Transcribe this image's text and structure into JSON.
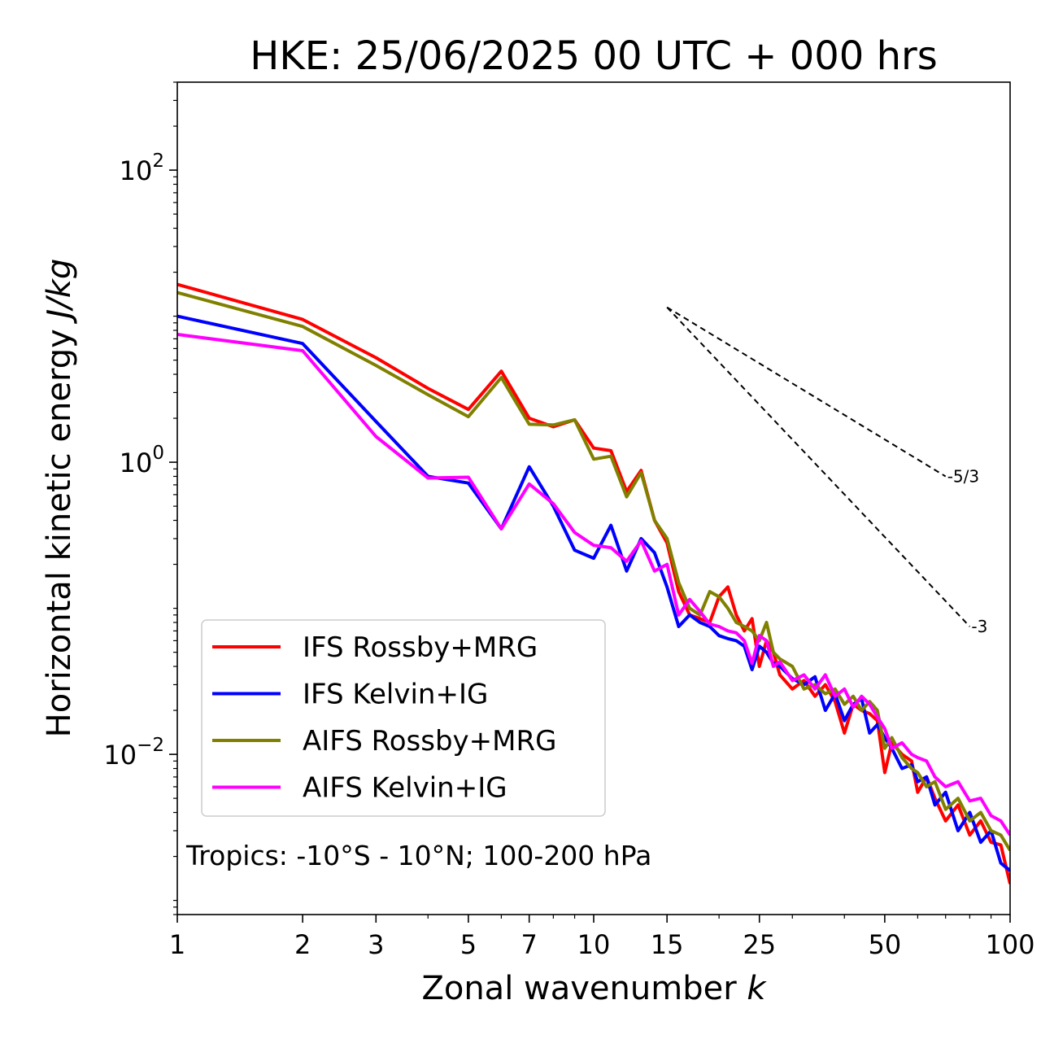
{
  "chart_data": {
    "type": "line",
    "title": "HKE: 25/06/2025 00 UTC + 000 hrs",
    "xlabel": "Zonal wavenumber",
    "xlabel_var": "k",
    "ylabel": "Horizontal kinetic energy",
    "ylabel_unit": "J/kg",
    "xscale": "log",
    "yscale": "log",
    "xlim": [
      1,
      100
    ],
    "ylim": [
      0.0008,
      400
    ],
    "xticks": [
      1,
      2,
      3,
      5,
      7,
      10,
      15,
      25,
      50,
      100
    ],
    "xtick_labels": [
      "1",
      "2",
      "3",
      "5",
      "7",
      "10",
      "15",
      "25",
      "50",
      "100"
    ],
    "yticks": [
      {
        "value": 100,
        "base": "10",
        "exp": "2"
      },
      {
        "value": 1,
        "base": "10",
        "exp": "0"
      },
      {
        "value": 0.01,
        "base": "10",
        "exp": "−2"
      }
    ],
    "legend_position": "lower-left",
    "annotation": "Tropics: -10°S - 10°N; 100-200 hPa",
    "reference_slopes": [
      {
        "label": "-5/3",
        "x": [
          15,
          70
        ],
        "y": [
          11.5,
          0.8
        ]
      },
      {
        "label": "-3",
        "x": [
          15,
          80
        ],
        "y": [
          11.5,
          0.075
        ]
      }
    ],
    "series": [
      {
        "name": "IFS Rossby+MRG",
        "color": "#ff0000",
        "points": [
          [
            1,
            16.5
          ],
          [
            2,
            9.5
          ],
          [
            3,
            5.2
          ],
          [
            4,
            3.2
          ],
          [
            5,
            2.3
          ],
          [
            6,
            4.2
          ],
          [
            7,
            2.0
          ],
          [
            8,
            1.75
          ],
          [
            9,
            1.95
          ],
          [
            10,
            1.25
          ],
          [
            11,
            1.2
          ],
          [
            12,
            0.63
          ],
          [
            13,
            0.88
          ],
          [
            14,
            0.4
          ],
          [
            15,
            0.28
          ],
          [
            16,
            0.13
          ],
          [
            17,
            0.09
          ],
          [
            18,
            0.085
          ],
          [
            19,
            0.08
          ],
          [
            20,
            0.12
          ],
          [
            21,
            0.14
          ],
          [
            22,
            0.09
          ],
          [
            23,
            0.07
          ],
          [
            24,
            0.085
          ],
          [
            25,
            0.04
          ],
          [
            26,
            0.06
          ],
          [
            27,
            0.05
          ],
          [
            28,
            0.035
          ],
          [
            30,
            0.028
          ],
          [
            32,
            0.032
          ],
          [
            34,
            0.025
          ],
          [
            36,
            0.03
          ],
          [
            38,
            0.023
          ],
          [
            40,
            0.014
          ],
          [
            42,
            0.022
          ],
          [
            44,
            0.02
          ],
          [
            46,
            0.019
          ],
          [
            48,
            0.017
          ],
          [
            50,
            0.0075
          ],
          [
            52,
            0.012
          ],
          [
            55,
            0.01
          ],
          [
            58,
            0.009
          ],
          [
            60,
            0.0055
          ],
          [
            63,
            0.007
          ],
          [
            66,
            0.005
          ],
          [
            70,
            0.0035
          ],
          [
            75,
            0.0045
          ],
          [
            80,
            0.0028
          ],
          [
            85,
            0.0035
          ],
          [
            90,
            0.0025
          ],
          [
            95,
            0.0024
          ],
          [
            100,
            0.0013
          ]
        ]
      },
      {
        "name": "IFS Kelvin+IG",
        "color": "#0000ff",
        "points": [
          [
            1,
            10
          ],
          [
            2,
            6.5
          ],
          [
            3,
            1.9
          ],
          [
            4,
            0.8
          ],
          [
            5,
            0.72
          ],
          [
            6,
            0.35
          ],
          [
            7,
            0.93
          ],
          [
            8,
            0.5
          ],
          [
            9,
            0.25
          ],
          [
            10,
            0.22
          ],
          [
            11,
            0.37
          ],
          [
            12,
            0.18
          ],
          [
            13,
            0.3
          ],
          [
            14,
            0.24
          ],
          [
            15,
            0.14
          ],
          [
            16,
            0.075
          ],
          [
            17,
            0.09
          ],
          [
            18,
            0.08
          ],
          [
            19,
            0.075
          ],
          [
            20,
            0.065
          ],
          [
            21,
            0.062
          ],
          [
            22,
            0.06
          ],
          [
            23,
            0.055
          ],
          [
            24,
            0.038
          ],
          [
            25,
            0.055
          ],
          [
            26,
            0.05
          ],
          [
            27,
            0.042
          ],
          [
            28,
            0.04
          ],
          [
            30,
            0.033
          ],
          [
            32,
            0.03
          ],
          [
            34,
            0.034
          ],
          [
            36,
            0.02
          ],
          [
            38,
            0.026
          ],
          [
            40,
            0.017
          ],
          [
            42,
            0.022
          ],
          [
            44,
            0.024
          ],
          [
            46,
            0.014
          ],
          [
            48,
            0.016
          ],
          [
            50,
            0.013
          ],
          [
            52,
            0.011
          ],
          [
            55,
            0.008
          ],
          [
            58,
            0.0085
          ],
          [
            60,
            0.0065
          ],
          [
            63,
            0.007
          ],
          [
            66,
            0.0045
          ],
          [
            70,
            0.0055
          ],
          [
            75,
            0.003
          ],
          [
            80,
            0.004
          ],
          [
            85,
            0.0025
          ],
          [
            90,
            0.003
          ],
          [
            95,
            0.0018
          ],
          [
            100,
            0.0016
          ]
        ]
      },
      {
        "name": "AIFS Rossby+MRG",
        "color": "#808000",
        "points": [
          [
            1,
            14.5
          ],
          [
            2,
            8.5
          ],
          [
            3,
            4.6
          ],
          [
            4,
            2.9
          ],
          [
            5,
            2.05
          ],
          [
            6,
            3.8
          ],
          [
            7,
            1.82
          ],
          [
            8,
            1.8
          ],
          [
            9,
            1.95
          ],
          [
            10,
            1.05
          ],
          [
            11,
            1.1
          ],
          [
            12,
            0.58
          ],
          [
            13,
            0.85
          ],
          [
            14,
            0.4
          ],
          [
            15,
            0.3
          ],
          [
            16,
            0.15
          ],
          [
            17,
            0.1
          ],
          [
            18,
            0.09
          ],
          [
            19,
            0.13
          ],
          [
            20,
            0.12
          ],
          [
            21,
            0.1
          ],
          [
            22,
            0.08
          ],
          [
            23,
            0.075
          ],
          [
            24,
            0.07
          ],
          [
            25,
            0.06
          ],
          [
            26,
            0.08
          ],
          [
            27,
            0.05
          ],
          [
            28,
            0.045
          ],
          [
            30,
            0.04
          ],
          [
            32,
            0.028
          ],
          [
            34,
            0.03
          ],
          [
            36,
            0.026
          ],
          [
            38,
            0.028
          ],
          [
            40,
            0.022
          ],
          [
            42,
            0.025
          ],
          [
            44,
            0.02
          ],
          [
            46,
            0.023
          ],
          [
            48,
            0.02
          ],
          [
            50,
            0.011
          ],
          [
            52,
            0.013
          ],
          [
            55,
            0.0095
          ],
          [
            58,
            0.008
          ],
          [
            60,
            0.0075
          ],
          [
            63,
            0.006
          ],
          [
            66,
            0.0065
          ],
          [
            70,
            0.0042
          ],
          [
            75,
            0.005
          ],
          [
            80,
            0.0035
          ],
          [
            85,
            0.004
          ],
          [
            90,
            0.003
          ],
          [
            95,
            0.0028
          ],
          [
            100,
            0.0022
          ]
        ]
      },
      {
        "name": "AIFS Kelvin+IG",
        "color": "#ff00ff",
        "points": [
          [
            1,
            7.5
          ],
          [
            2,
            5.8
          ],
          [
            3,
            1.5
          ],
          [
            4,
            0.78
          ],
          [
            5,
            0.79
          ],
          [
            6,
            0.35
          ],
          [
            7,
            0.71
          ],
          [
            8,
            0.52
          ],
          [
            9,
            0.33
          ],
          [
            10,
            0.27
          ],
          [
            11,
            0.26
          ],
          [
            12,
            0.21
          ],
          [
            13,
            0.29
          ],
          [
            14,
            0.18
          ],
          [
            15,
            0.2
          ],
          [
            16,
            0.09
          ],
          [
            17,
            0.115
          ],
          [
            18,
            0.095
          ],
          [
            19,
            0.078
          ],
          [
            20,
            0.075
          ],
          [
            21,
            0.07
          ],
          [
            22,
            0.068
          ],
          [
            23,
            0.06
          ],
          [
            24,
            0.042
          ],
          [
            25,
            0.065
          ],
          [
            26,
            0.06
          ],
          [
            27,
            0.04
          ],
          [
            28,
            0.043
          ],
          [
            30,
            0.032
          ],
          [
            32,
            0.035
          ],
          [
            34,
            0.028
          ],
          [
            36,
            0.035
          ],
          [
            38,
            0.025
          ],
          [
            40,
            0.028
          ],
          [
            42,
            0.021
          ],
          [
            44,
            0.025
          ],
          [
            46,
            0.022
          ],
          [
            48,
            0.018
          ],
          [
            50,
            0.015
          ],
          [
            52,
            0.011
          ],
          [
            55,
            0.012
          ],
          [
            58,
            0.01
          ],
          [
            60,
            0.0095
          ],
          [
            63,
            0.009
          ],
          [
            66,
            0.007
          ],
          [
            70,
            0.006
          ],
          [
            75,
            0.0065
          ],
          [
            80,
            0.0048
          ],
          [
            85,
            0.005
          ],
          [
            90,
            0.0038
          ],
          [
            95,
            0.0035
          ],
          [
            100,
            0.0028
          ]
        ]
      }
    ]
  }
}
